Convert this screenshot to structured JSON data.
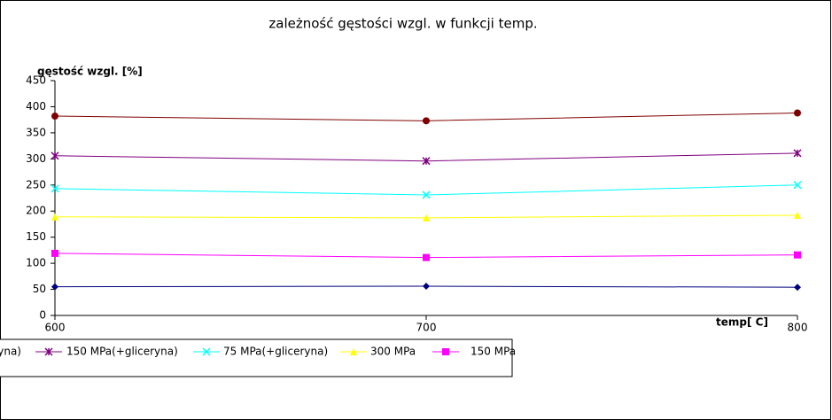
{
  "chart_data": {
    "type": "line",
    "title": "zależność gęstości wzgl. w funkcji temp.",
    "y_label": "gęstość wzgl. [%]",
    "x_label": "temp[ C]",
    "x": [
      600,
      700,
      800
    ],
    "xlim": [
      600,
      800
    ],
    "xticks": [
      600,
      700,
      800
    ],
    "ylim": [
      0,
      450
    ],
    "yticks": [
      0,
      50,
      100,
      150,
      200,
      250,
      300,
      350,
      400,
      450
    ],
    "series": [
      {
        "name": "yna)",
        "color": "#800000",
        "marker": "circle",
        "values": [
          382,
          373,
          388
        ]
      },
      {
        "name": "150 MPa(+gliceryna)",
        "color": "#800080",
        "marker": "star",
        "values": [
          306,
          296,
          311
        ]
      },
      {
        "name": "75 MPa(+gliceryna)",
        "color": "#00ffff",
        "marker": "x",
        "values": [
          243,
          231,
          250
        ]
      },
      {
        "name": "300 MPa",
        "color": "#ffff00",
        "marker": "triangle",
        "values": [
          189,
          187,
          192
        ]
      },
      {
        "name": "150 MPa",
        "color": "#ff00ff",
        "marker": "square",
        "values": [
          119,
          111,
          116
        ]
      },
      {
        "color": "#000080",
        "marker": "diamond",
        "values": [
          55,
          56,
          54
        ]
      }
    ]
  }
}
